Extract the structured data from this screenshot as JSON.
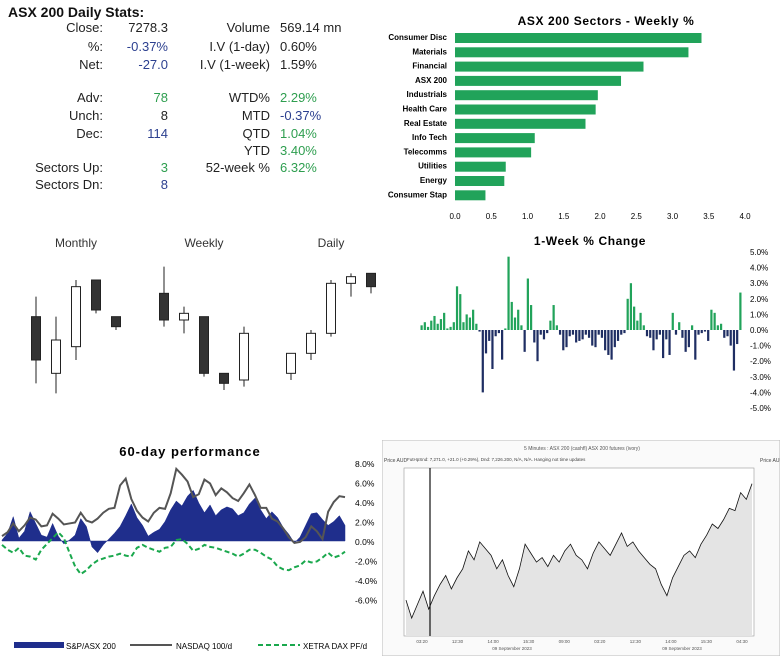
{
  "stats": {
    "title": "ASX 200 Daily Stats:",
    "rows": [
      {
        "label": "Close:",
        "value": "7278.3",
        "label2": "Volume",
        "value2": "569.14 mn",
        "c1": "dark",
        "c2": "dark"
      },
      {
        "label": "%:",
        "value": "-0.37%",
        "label2": "I.V (1-day)",
        "value2": "0.60%",
        "c1": "blue",
        "c2": "dark"
      },
      {
        "label": "Net:",
        "value": "-27.0",
        "label2": "I.V (1-week)",
        "value2": "1.59%",
        "c1": "blue",
        "c2": "dark"
      },
      {
        "label": "Adv:",
        "value": "78",
        "label2": "WTD%",
        "value2": "2.29%",
        "c1": "green",
        "c2": "green"
      },
      {
        "label": "Unch:",
        "value": "8",
        "label2": "MTD",
        "value2": "-0.37%",
        "c1": "dark",
        "c2": "blue"
      },
      {
        "label": "Dec:",
        "value": "114",
        "label2": "QTD",
        "value2": "1.04%",
        "c1": "blue",
        "c2": "green"
      },
      {
        "label": "",
        "value": "",
        "label2": "YTD",
        "value2": "3.40%",
        "c1": "dark",
        "c2": "green"
      },
      {
        "label": "Sectors Up:",
        "value": "3",
        "label2": "52-week %",
        "value2": "6.32%",
        "c1": "green",
        "c2": "green"
      },
      {
        "label": "Sectors Dn:",
        "value": "8",
        "label2": "",
        "value2": "",
        "c1": "blue",
        "c2": "dark"
      }
    ]
  },
  "colors": {
    "green": "#21a35a",
    "navy": "#1f2e63",
    "dark": "#222222"
  },
  "chart_data": [
    {
      "type": "bar",
      "orientation": "horizontal",
      "title": "ASX 200 Sectors - Weekly %",
      "categories": [
        "Consumer Disc",
        "Materials",
        "Financial",
        "ASX 200",
        "Industrials",
        "Health Care",
        "Real Estate",
        "Info Tech",
        "Telecomms",
        "Utilities",
        "Energy",
        "Consumer Stap"
      ],
      "values": [
        3.4,
        3.22,
        2.6,
        2.29,
        1.97,
        1.94,
        1.8,
        1.1,
        1.05,
        0.7,
        0.68,
        0.42
      ],
      "xlim": [
        0,
        4.0
      ],
      "ticks": [
        "0.0",
        "0.5",
        "1.0",
        "1.5",
        "2.0",
        "2.5",
        "3.0",
        "3.5",
        "4.0"
      ],
      "grid": false
    },
    {
      "type": "candlestick",
      "panels": [
        {
          "label": "Monthly",
          "candles": [
            {
              "o": 40,
              "h": 46,
              "l": 20,
              "c": 27,
              "dir": "down"
            },
            {
              "o": 23,
              "h": 40,
              "l": 17,
              "c": 33,
              "dir": "up"
            },
            {
              "o": 31,
              "h": 51,
              "l": 27,
              "c": 49,
              "dir": "up"
            },
            {
              "o": 51,
              "h": 51,
              "l": 41,
              "c": 42,
              "dir": "down"
            },
            {
              "o": 40,
              "h": 40,
              "l": 36,
              "c": 37,
              "dir": "down"
            }
          ]
        },
        {
          "label": "Weekly",
          "candles": [
            {
              "o": 47,
              "h": 55,
              "l": 37,
              "c": 39,
              "dir": "down"
            },
            {
              "o": 39,
              "h": 43,
              "l": 35,
              "c": 41,
              "dir": "up"
            },
            {
              "o": 40,
              "h": 40,
              "l": 22,
              "c": 23,
              "dir": "down"
            },
            {
              "o": 23,
              "h": 23,
              "l": 18,
              "c": 20,
              "dir": "down"
            },
            {
              "o": 21,
              "h": 37,
              "l": 19,
              "c": 35,
              "dir": "up"
            }
          ]
        },
        {
          "label": "Daily",
          "candles": [
            {
              "o": 23,
              "h": 29,
              "l": 21,
              "c": 29,
              "dir": "up"
            },
            {
              "o": 29,
              "h": 36,
              "l": 27,
              "c": 35,
              "dir": "up"
            },
            {
              "o": 35,
              "h": 51,
              "l": 34,
              "c": 50,
              "dir": "up"
            },
            {
              "o": 50,
              "h": 53,
              "l": 46,
              "c": 52,
              "dir": "up"
            },
            {
              "o": 53,
              "h": 53,
              "l": 47,
              "c": 49,
              "dir": "down"
            }
          ]
        }
      ]
    },
    {
      "type": "bar",
      "title": "1-Week % Change",
      "ylim": [
        -5.0,
        5.0
      ],
      "yticks": [
        "5.0%",
        "4.0%",
        "3.0%",
        "2.0%",
        "1.0%",
        "0.0%",
        "-1.0%",
        "-2.0%",
        "-3.0%",
        "-4.0%",
        "-5.0%"
      ],
      "values": [
        0.3,
        0.5,
        0.2,
        0.6,
        0.9,
        0.4,
        0.7,
        1.1,
        0.1,
        0.2,
        0.5,
        2.8,
        2.3,
        0.5,
        1.0,
        0.8,
        1.3,
        0.4,
        -0.1,
        -4.0,
        -1.5,
        -0.7,
        -2.5,
        -0.4,
        -0.2,
        -1.9,
        0.1,
        4.7,
        1.8,
        0.8,
        1.3,
        0.3,
        -1.4,
        3.3,
        1.6,
        -0.8,
        -2.0,
        -0.3,
        -0.6,
        -0.2,
        0.6,
        1.6,
        0.3,
        -0.3,
        -1.3,
        -1.1,
        -0.4,
        -0.3,
        -0.8,
        -0.7,
        -0.6,
        -0.3,
        -0.5,
        -1.0,
        -1.1,
        -0.3,
        -0.5,
        -1.3,
        -1.6,
        -1.9,
        -1.1,
        -0.7,
        -0.3,
        -0.2,
        2.0,
        3.0,
        1.5,
        0.6,
        1.1,
        0.3,
        -0.4,
        -0.5,
        -1.3,
        -0.6,
        -0.3,
        -1.8,
        -0.6,
        -1.6,
        1.1,
        -0.3,
        0.5,
        -0.5,
        -1.4,
        -1.1,
        0.3,
        -1.9,
        -0.3,
        -0.2,
        -0.1,
        -0.7,
        1.3,
        1.1,
        0.3,
        0.4,
        -0.5,
        -0.4,
        -1.0,
        -2.6,
        -0.9,
        2.4
      ]
    },
    {
      "type": "area",
      "title": "60-day performance",
      "ylim": [
        -8.0,
        8.0
      ],
      "yticks": [
        "8.0%",
        "6.0%",
        "4.0%",
        "2.0%",
        "0.0%",
        "-2.0%",
        "-4.0%",
        "-6.0%"
      ],
      "series": [
        {
          "name": "S&P/ASX 200",
          "type": "area",
          "values": [
            0.1,
            0.8,
            2.5,
            0.3,
            1.0,
            3.0,
            1.8,
            0.6,
            0.4,
            1.8,
            0.5,
            -0.3,
            0.1,
            0.6,
            2.3,
            1.5,
            -0.6,
            -1.2,
            -0.4,
            0.2,
            0.8,
            1.5,
            2.6,
            3.8,
            2.4,
            1.6,
            0.5,
            0.9,
            1.2,
            2.0,
            3.2,
            4.1,
            3.6,
            4.6,
            5.2,
            3.9,
            2.9,
            3.7,
            2.6,
            3.2,
            3.5,
            3.3,
            2.6,
            2.9,
            3.8,
            4.4,
            3.2,
            2.3,
            3.0,
            2.4,
            1.4,
            0.7,
            -0.2,
            0.4,
            1.6,
            2.8,
            2.9,
            2.2,
            1.6,
            2.0,
            2.6,
            1.6
          ]
        },
        {
          "name": "NASDAQ 100/d",
          "type": "line",
          "values": [
            0.5,
            0.9,
            1.8,
            1.0,
            1.6,
            2.4,
            2.2,
            1.5,
            1.6,
            2.8,
            2.3,
            1.7,
            1.8,
            1.9,
            2.9,
            2.1,
            1.9,
            2.3,
            2.9,
            3.3,
            3.4,
            5.7,
            6.4,
            4.3,
            3.1,
            2.4,
            2.0,
            2.9,
            3.4,
            3.3,
            4.9,
            7.4,
            6.8,
            6.1,
            4.5,
            4.8,
            6.3,
            5.9,
            4.7,
            5.4,
            5.0,
            4.4,
            4.1,
            4.9,
            5.8,
            4.7,
            3.4,
            3.4,
            2.3,
            2.0,
            1.3,
            0.4,
            -0.2,
            -0.1,
            0.4,
            1.5,
            1.0,
            0.2,
            3.0,
            4.0,
            4.6,
            4.5
          ]
        },
        {
          "name": "XETRA DAX PF/d",
          "type": "line",
          "values": [
            -0.4,
            -0.9,
            -1.2,
            -0.7,
            -1.5,
            -1.6,
            -1.9,
            -0.9,
            -0.3,
            0.3,
            0.9,
            0.3,
            -1.2,
            -2.6,
            -3.4,
            -3.0,
            -2.4,
            -2.0,
            -1.8,
            -1.6,
            -1.5,
            -1.3,
            -1.5,
            -1.6,
            -0.7,
            -0.4,
            -0.7,
            -0.9,
            -1.1,
            -0.7,
            -0.6,
            0.1,
            0.2,
            -0.3,
            -1.0,
            -0.8,
            -0.4,
            -0.6,
            -0.7,
            -0.9,
            -1.1,
            -1.3,
            -1.6,
            -1.3,
            -0.9,
            -0.9,
            -1.2,
            -1.6,
            -1.9,
            -2.6,
            -2.9,
            -3.0,
            -2.7,
            -2.5,
            -2.0,
            -2.2,
            -2.1,
            -1.7,
            -1.2,
            -1.7,
            -1.5,
            -1.1
          ]
        }
      ]
    },
    {
      "type": "line",
      "title": "5 Minutes : ASX 200 (cashfl) ASX 200 futures (ivory)",
      "header": "FutHpSnd: 7,271.0, +21.0 (+0.29%), Dnd: 7,226.200, N/A, N/A. Hanging not time updates",
      "xticks": [
        "03:20",
        "12:30",
        "14:00",
        "15:30",
        "09:00",
        "03:20",
        "12:30",
        "14:00",
        "15:30",
        "04:30"
      ],
      "xdates": [
        "09 September 2023",
        "09 September 2023"
      ],
      "price_label": "Price AUD",
      "values": [
        7226,
        7218,
        7224,
        7230,
        7222,
        7228,
        7233,
        7237,
        7231,
        7236,
        7240,
        7248,
        7244,
        7252,
        7249,
        7246,
        7240,
        7244,
        7237,
        7232,
        7240,
        7251,
        7247,
        7243,
        7245,
        7241,
        7246,
        7243,
        7248,
        7251,
        7246,
        7244,
        7240,
        7247,
        7252,
        7249,
        7246,
        7251,
        7256,
        7250,
        7252,
        7248,
        7245,
        7242,
        7240,
        7233,
        7228,
        7236,
        7241,
        7246,
        7248,
        7245,
        7251,
        7255,
        7260,
        7258,
        7262,
        7267,
        7266,
        7274,
        7271,
        7278
      ]
    }
  ]
}
